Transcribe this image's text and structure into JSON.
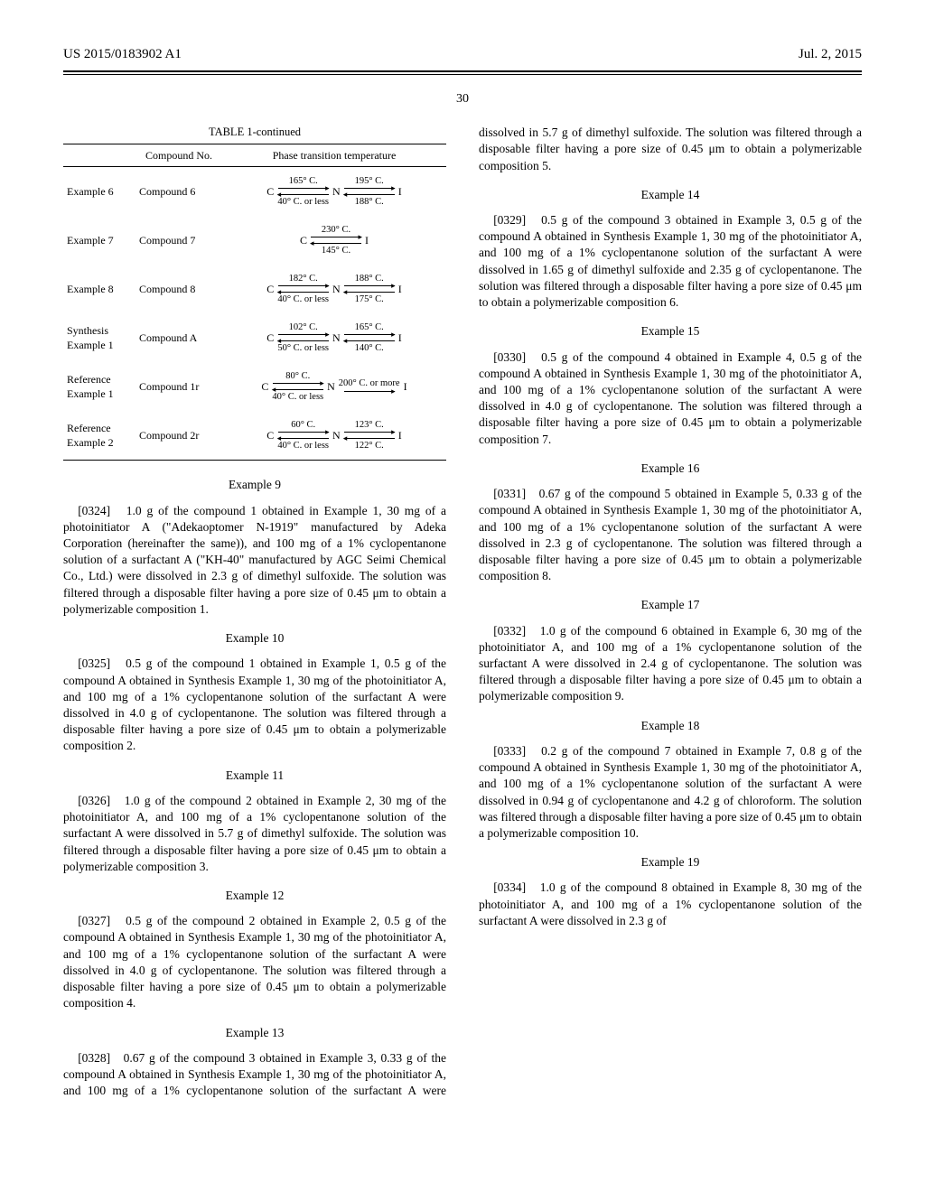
{
  "header": {
    "left": "US 2015/0183902 A1",
    "right": "Jul. 2, 2015"
  },
  "page_number": "30",
  "table": {
    "title": "TABLE 1-continued",
    "columns": [
      "",
      "Compound No.",
      "Phase transition temperature"
    ],
    "rows": [
      {
        "label": "Example 6",
        "compound": "Compound 6",
        "type": "CNI",
        "t1_top": "165° C.",
        "t1_bot": "40° C. or less",
        "t2_top": "195° C.",
        "t2_bot": "188° C."
      },
      {
        "label": "Example 7",
        "compound": "Compound 7",
        "type": "CI",
        "t1_top": "230° C.",
        "t1_bot": "145° C."
      },
      {
        "label": "Example 8",
        "compound": "Compound 8",
        "type": "CNI",
        "t1_top": "182° C.",
        "t1_bot": "40° C. or less",
        "t2_top": "188° C.",
        "t2_bot": "175° C."
      },
      {
        "label": "Synthesis Example 1",
        "compound": "Compound A",
        "type": "CNI",
        "t1_top": "102° C.",
        "t1_bot": "50° C. or less",
        "t2_top": "165° C.",
        "t2_bot": "140° C."
      },
      {
        "label": "Reference Example 1",
        "compound": "Compound 1r",
        "type": "CNI_single",
        "t1_top": "80° C.",
        "t1_bot": "40° C. or less",
        "t2_top": "200° C. or more"
      },
      {
        "label": "Reference Example 2",
        "compound": "Compound 2r",
        "type": "CNI",
        "t1_top": "60° C.",
        "t1_bot": "40° C. or less",
        "t2_top": "123° C.",
        "t2_bot": "122° C."
      }
    ]
  },
  "examples": [
    {
      "title": "Example 9",
      "pnum": "[0324]",
      "text": "1.0 g of the compound 1 obtained in Example 1, 30 mg of a photoinitiator A (\"Adekaoptomer N-1919\" manufactured by Adeka Corporation (hereinafter the same)), and 100 mg of a 1% cyclopentanone solution of a surfactant A (\"KH-40\" manufactured by AGC Seimi Chemical Co., Ltd.) were dissolved in 2.3 g of dimethyl sulfoxide. The solution was filtered through a disposable filter having a pore size of 0.45 μm to obtain a polymerizable composition 1."
    },
    {
      "title": "Example 10",
      "pnum": "[0325]",
      "text": "0.5 g of the compound 1 obtained in Example 1, 0.5 g of the compound A obtained in Synthesis Example 1, 30 mg of the photoinitiator A, and 100 mg of a 1% cyclopentanone solution of the surfactant A were dissolved in 4.0 g of cyclopentanone. The solution was filtered through a disposable filter having a pore size of 0.45 μm to obtain a polymerizable composition 2."
    },
    {
      "title": "Example 11",
      "pnum": "[0326]",
      "text": "1.0 g of the compound 2 obtained in Example 2, 30 mg of the photoinitiator A, and 100 mg of a 1% cyclopentanone solution of the surfactant A were dissolved in 5.7 g of dimethyl sulfoxide. The solution was filtered through a disposable filter having a pore size of 0.45 μm to obtain a polymerizable composition 3."
    },
    {
      "title": "Example 12",
      "pnum": "[0327]",
      "text": "0.5 g of the compound 2 obtained in Example 2, 0.5 g of the compound A obtained in Synthesis Example 1, 30 mg of the photoinitiator A, and 100 mg of a 1% cyclopentanone solution of the surfactant A were dissolved in 4.0 g of cyclopentanone. The solution was filtered through a disposable filter having a pore size of 0.45 μm to obtain a polymerizable composition 4."
    },
    {
      "title": "Example 13",
      "pnum": "[0328]",
      "text": "0.67 g of the compound 3 obtained in Example 3, 0.33 g of the compound A obtained in Synthesis Example 1, 30 mg of the photoinitiator A, and 100 mg of a 1% cyclopentanone solution of the surfactant A were dissolved in 5.7 g of dimethyl sulfoxide. The solution was filtered through a disposable filter having a pore size of 0.45 μm to obtain a polymerizable composition 5."
    },
    {
      "title": "Example 14",
      "pnum": "[0329]",
      "text": "0.5 g of the compound 3 obtained in Example 3, 0.5 g of the compound A obtained in Synthesis Example 1, 30 mg of the photoinitiator A, and 100 mg of a 1% cyclopentanone solution of the surfactant A were dissolved in 1.65 g of dimethyl sulfoxide and 2.35 g of cyclopentanone. The solution was filtered through a disposable filter having a pore size of 0.45 μm to obtain a polymerizable composition 6."
    },
    {
      "title": "Example 15",
      "pnum": "[0330]",
      "text": "0.5 g of the compound 4 obtained in Example 4, 0.5 g of the compound A obtained in Synthesis Example 1, 30 mg of the photoinitiator A, and 100 mg of a 1% cyclopentanone solution of the surfactant A were dissolved in 4.0 g of cyclopentanone. The solution was filtered through a disposable filter having a pore size of 0.45 μm to obtain a polymerizable composition 7."
    },
    {
      "title": "Example 16",
      "pnum": "[0331]",
      "text": "0.67 g of the compound 5 obtained in Example 5, 0.33 g of the compound A obtained in Synthesis Example 1, 30 mg of the photoinitiator A, and 100 mg of a 1% cyclopentanone solution of the surfactant A were dissolved in 2.3 g of cyclopentanone. The solution was filtered through a disposable filter having a pore size of 0.45 μm to obtain a polymerizable composition 8."
    },
    {
      "title": "Example 17",
      "pnum": "[0332]",
      "text": "1.0 g of the compound 6 obtained in Example 6, 30 mg of the photoinitiator A, and 100 mg of a 1% cyclopentanone solution of the surfactant A were dissolved in 2.4 g of cyclopentanone. The solution was filtered through a disposable filter having a pore size of 0.45 μm to obtain a polymerizable composition 9."
    },
    {
      "title": "Example 18",
      "pnum": "[0333]",
      "text": "0.2 g of the compound 7 obtained in Example 7, 0.8 g of the compound A obtained in Synthesis Example 1, 30 mg of the photoinitiator A, and 100 mg of a 1% cyclopentanone solution of the surfactant A were dissolved in 0.94 g of cyclopentanone and 4.2 g of chloroform. The solution was filtered through a disposable filter having a pore size of 0.45 μm to obtain a polymerizable composition 10."
    },
    {
      "title": "Example 19",
      "pnum": "[0334]",
      "text": "1.0 g of the compound 8 obtained in Example 8, 30 mg of the photoinitiator A, and 100 mg of a 1% cyclopentanone solution of the surfactant A were dissolved in 2.3 g of"
    }
  ]
}
